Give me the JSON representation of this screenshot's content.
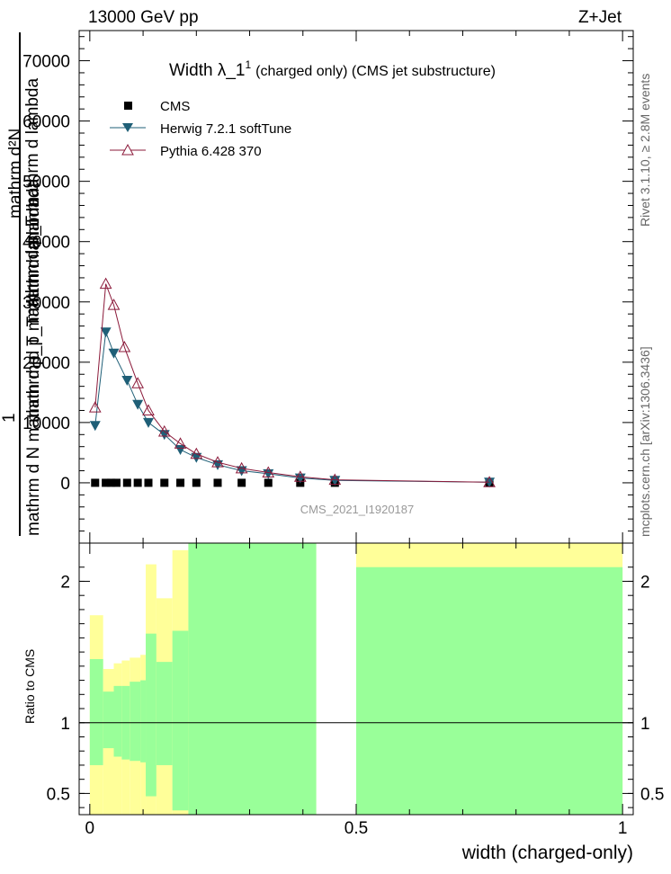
{
  "header": {
    "left": "13000 GeV pp",
    "right": "Z+Jet"
  },
  "side_labels": {
    "rivet": "Rivet 3.1.10, ≥ 2.8M events",
    "mcplots": "mcplots.cern.ch [arXiv:1306.3436]"
  },
  "chart_data": {
    "type": "line",
    "title": "Width λ_1",
    "title_sup": "1",
    "title_suffix": "(charged only) (CMS jet substructure)",
    "watermark": "CMS_2021_I1920187",
    "xlabel": "width (charged-only)",
    "ylabel": {
      "numerator": "mathrm d²N",
      "denominator": "mathrm d N mathrm d p_T mathrm d lambda",
      "prefactor": "1",
      "overlay": "mathrm d p_T mathrm d lambda",
      "overlay_numerator": "mathrm d p_T mathrm d lambda"
    },
    "xlim": [
      -0.02,
      1.02
    ],
    "ylim": [
      -10000,
      75000
    ],
    "x_ticks": [
      {
        "v": 0,
        "label": "0"
      },
      {
        "v": 0.5,
        "label": "0.5"
      },
      {
        "v": 1,
        "label": "1"
      }
    ],
    "y_ticks": [
      {
        "v": 0,
        "label": "0"
      },
      {
        "v": 10000,
        "label": "10000"
      },
      {
        "v": 20000,
        "label": "20000"
      },
      {
        "v": 30000,
        "label": "30000"
      },
      {
        "v": 40000,
        "label": "40000"
      },
      {
        "v": 50000,
        "label": "50000"
      },
      {
        "v": 60000,
        "label": "60000"
      },
      {
        "v": 70000,
        "label": "70000"
      }
    ],
    "legend": [
      {
        "name": "CMS",
        "marker": "square",
        "color": "#000000"
      },
      {
        "name": "Herwig 7.2.1 softTune",
        "marker": "triangle-down",
        "color": "#1f5f77"
      },
      {
        "name": "Pythia 6.428 370",
        "marker": "triangle-up-open",
        "color": "#8b1a3a"
      }
    ],
    "series": [
      {
        "name": "CMS",
        "x": [
          0.01,
          0.03,
          0.04,
          0.05,
          0.07,
          0.09,
          0.11,
          0.14,
          0.17,
          0.2,
          0.24,
          0.285,
          0.335,
          0.395,
          0.46,
          0.75
        ],
        "y": [
          0,
          0,
          0,
          0,
          0,
          0,
          0,
          0,
          0,
          0,
          0,
          0,
          0,
          0,
          0,
          0
        ]
      },
      {
        "name": "Herwig 7.2.1 softTune",
        "x": [
          0.01,
          0.03,
          0.045,
          0.07,
          0.09,
          0.11,
          0.14,
          0.17,
          0.2,
          0.24,
          0.285,
          0.335,
          0.395,
          0.46,
          0.75
        ],
        "y": [
          9500,
          25000,
          21500,
          17000,
          13000,
          10000,
          8000,
          5500,
          4200,
          3000,
          2000,
          1500,
          800,
          400,
          100
        ]
      },
      {
        "name": "Pythia 6.428 370",
        "x": [
          0.01,
          0.03,
          0.045,
          0.065,
          0.09,
          0.11,
          0.14,
          0.17,
          0.2,
          0.24,
          0.285,
          0.335,
          0.395,
          0.46,
          0.75
        ],
        "y": [
          12500,
          33000,
          29500,
          22500,
          16500,
          12000,
          8500,
          6500,
          4800,
          3400,
          2400,
          1700,
          1000,
          500,
          100
        ]
      }
    ],
    "ratio": {
      "ylabel": "Ratio to CMS",
      "ylim": [
        0.35,
        2.27
      ],
      "y_ticks": [
        {
          "v": 0.5,
          "label": "0.5"
        },
        {
          "v": 1,
          "label": "1"
        },
        {
          "v": 2,
          "label": "2"
        }
      ],
      "bands": [
        {
          "x0": 0.0,
          "x1": 0.025,
          "yellow": [
            0.35,
            1.76
          ],
          "green": [
            0.7,
            1.45
          ]
        },
        {
          "x0": 0.025,
          "x1": 0.045,
          "yellow": [
            0.35,
            1.38
          ],
          "green": [
            0.82,
            1.22
          ]
        },
        {
          "x0": 0.045,
          "x1": 0.06,
          "yellow": [
            0.35,
            1.42
          ],
          "green": [
            0.76,
            1.26
          ]
        },
        {
          "x0": 0.06,
          "x1": 0.075,
          "yellow": [
            0.35,
            1.44
          ],
          "green": [
            0.74,
            1.26
          ]
        },
        {
          "x0": 0.075,
          "x1": 0.095,
          "yellow": [
            0.35,
            1.46
          ],
          "green": [
            0.73,
            1.29
          ]
        },
        {
          "x0": 0.095,
          "x1": 0.105,
          "yellow": [
            0.35,
            1.48
          ],
          "green": [
            0.72,
            1.3
          ]
        },
        {
          "x0": 0.105,
          "x1": 0.125,
          "yellow": [
            0.35,
            2.12
          ],
          "green": [
            0.48,
            1.63
          ]
        },
        {
          "x0": 0.125,
          "x1": 0.155,
          "yellow": [
            0.35,
            1.88
          ],
          "green": [
            0.7,
            1.43
          ]
        },
        {
          "x0": 0.155,
          "x1": 0.185,
          "yellow": [
            0.35,
            2.22
          ],
          "green": [
            0.38,
            1.65
          ]
        },
        {
          "x0": 0.185,
          "x1": 0.425,
          "yellow": [
            0.35,
            2.27
          ],
          "green": [
            0.35,
            2.27
          ]
        },
        {
          "x0": 0.5,
          "x1": 1.0,
          "yellow": [
            0.35,
            2.27
          ],
          "green": [
            0.35,
            2.1
          ]
        }
      ],
      "reference": 1
    }
  }
}
